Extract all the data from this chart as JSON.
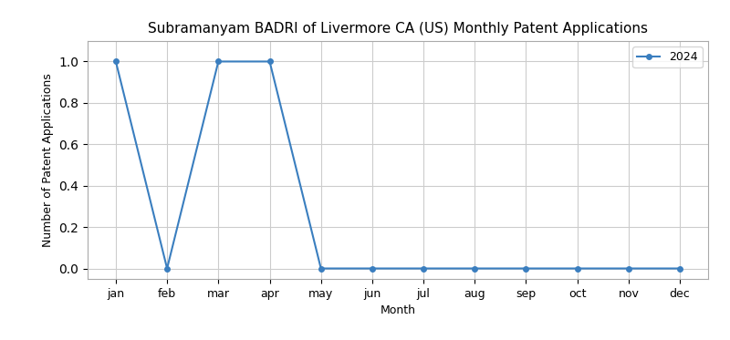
{
  "title": "Subramanyam BADRI of Livermore CA (US) Monthly Patent Applications",
  "xlabel": "Month",
  "ylabel": "Number of Patent Applications",
  "months": [
    "jan",
    "feb",
    "mar",
    "apr",
    "may",
    "jun",
    "jul",
    "aug",
    "sep",
    "oct",
    "nov",
    "dec"
  ],
  "values_2024": [
    1,
    0,
    1,
    1,
    0,
    0,
    0,
    0,
    0,
    0,
    0,
    0
  ],
  "line_color": "#3a7ebf",
  "marker": "o",
  "marker_size": 4,
  "legend_label": "2024",
  "ylim": [
    -0.05,
    1.1
  ],
  "grid": true,
  "background_color": "#ffffff",
  "plot_background": "#ffffff",
  "title_fontsize": 11,
  "axis_label_fontsize": 9,
  "tick_fontsize": 9
}
